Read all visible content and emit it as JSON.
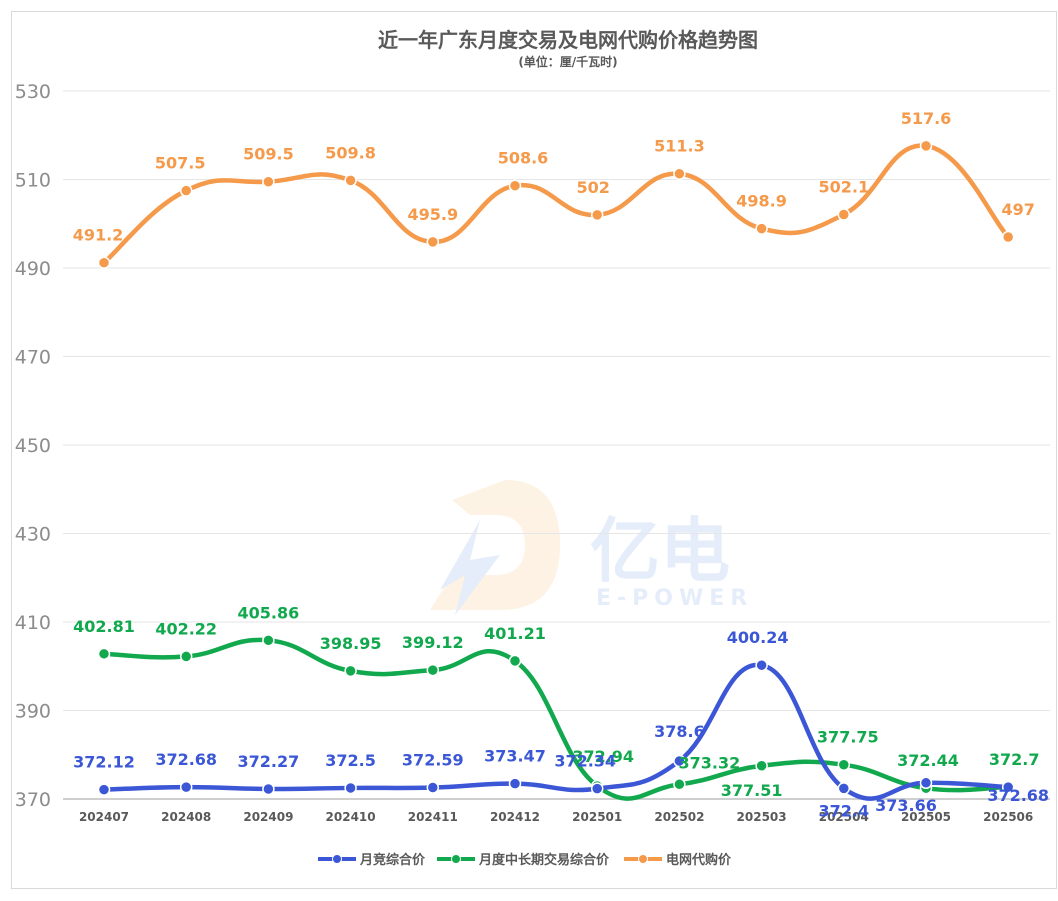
{
  "chart_data": {
    "type": "line",
    "title": "近一年广东月度交易及电网代购价格趋势图",
    "subtitle": "(单位：厘/千瓦时)",
    "xlabel": "",
    "ylabel": "",
    "ylim": [
      370,
      530
    ],
    "yticks": [
      370,
      390,
      410,
      430,
      450,
      470,
      490,
      510,
      530
    ],
    "grid": true,
    "legend_position": "bottom",
    "categories": [
      "202407",
      "202408",
      "202409",
      "202410",
      "202411",
      "202412",
      "202501",
      "202502",
      "202503",
      "202504",
      "202505",
      "202506"
    ],
    "series": [
      {
        "name": "月竞综合价",
        "color": "#3b57d6",
        "values": [
          372.12,
          372.68,
          372.27,
          372.5,
          372.59,
          373.47,
          372.34,
          378.6,
          400.24,
          372.4,
          373.66,
          372.68
        ],
        "labels": [
          "372.12",
          "372.68",
          "372.27",
          "372.5",
          "372.59",
          "373.47",
          "372.34",
          "378.6",
          "400.24",
          "372.4",
          "373.66",
          "372.68"
        ]
      },
      {
        "name": "月度中长期交易综合价",
        "color": "#11a84e",
        "values": [
          402.81,
          402.22,
          405.86,
          398.95,
          399.12,
          401.21,
          372.94,
          373.32,
          377.51,
          377.75,
          372.44,
          372.7
        ],
        "labels": [
          "402.81",
          "402.22",
          "405.86",
          "398.95",
          "399.12",
          "401.21",
          "372.94",
          "373.32",
          "377.51",
          "377.75",
          "372.44",
          "372.7"
        ]
      },
      {
        "name": "电网代购价",
        "color": "#f5994a",
        "values": [
          491.2,
          507.5,
          509.5,
          509.8,
          495.9,
          508.6,
          502,
          511.3,
          498.9,
          502.1,
          517.6,
          497
        ],
        "labels": [
          "491.2",
          "507.5",
          "509.5",
          "509.8",
          "495.9",
          "508.6",
          "502",
          "511.3",
          "498.9",
          "502.1",
          "517.6",
          "497"
        ]
      }
    ]
  },
  "watermark": {
    "text_cn": "亿电",
    "text_en": "E-POWER"
  }
}
